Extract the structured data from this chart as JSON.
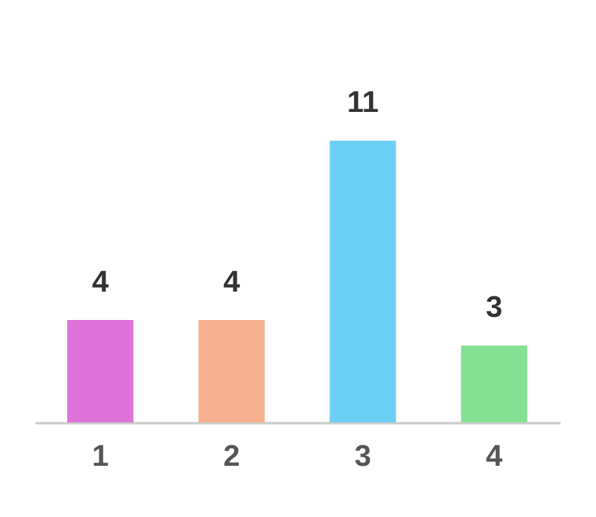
{
  "chart_data": {
    "type": "bar",
    "categories": [
      "1",
      "2",
      "3",
      "4"
    ],
    "values": [
      4,
      4,
      11,
      3
    ],
    "colors": [
      "#de72d9",
      "#f5b090",
      "#6ccff6",
      "#84e193"
    ],
    "data_labels": true,
    "grid": false
  }
}
